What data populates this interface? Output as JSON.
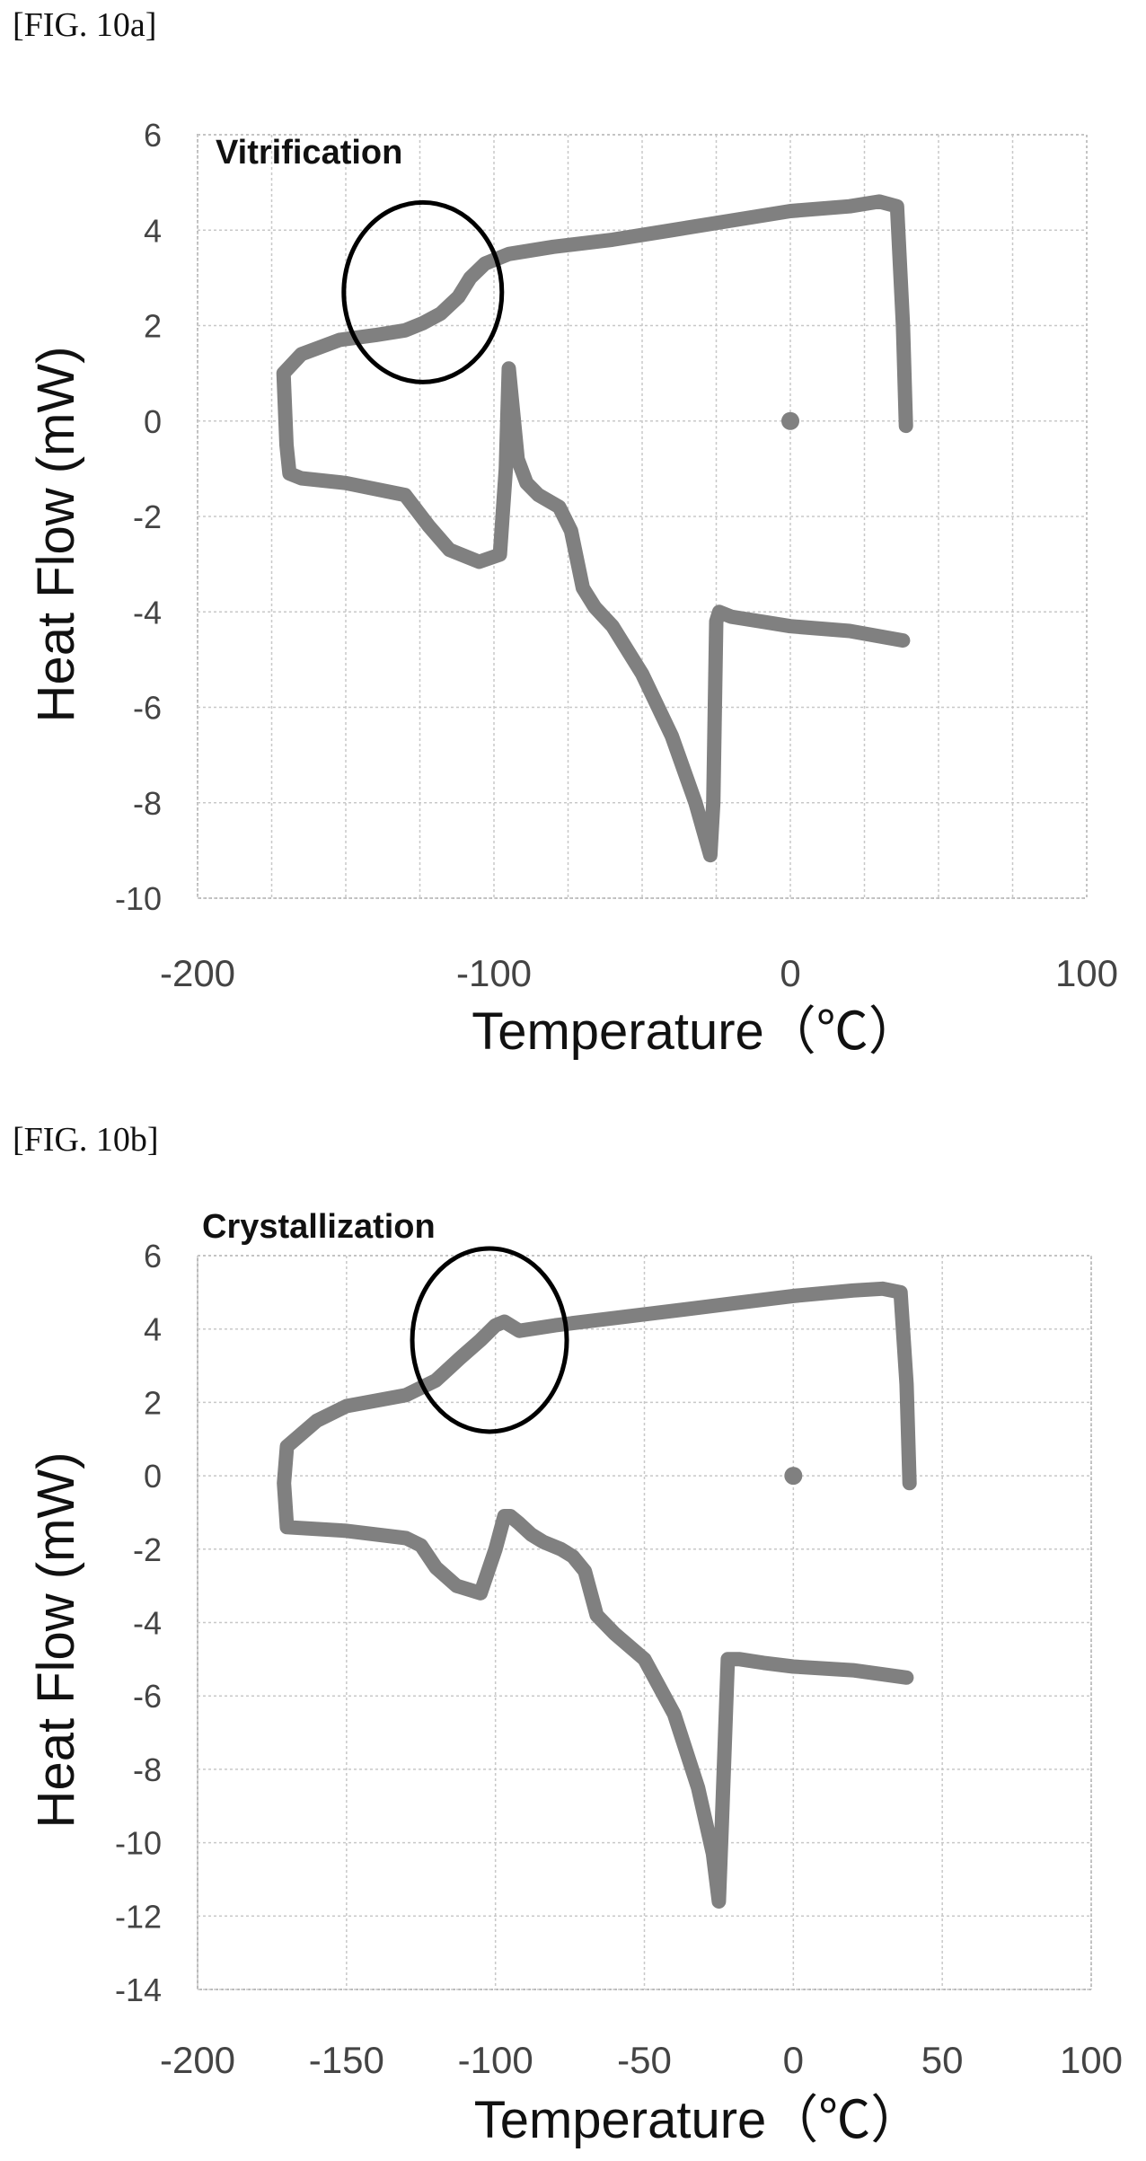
{
  "chart_data": [
    {
      "figure_label": "[FIG. 10a]",
      "type": "line",
      "title": "",
      "xlabel": "Temperature（℃）",
      "ylabel": "Heat Flow (mW)",
      "xlim": [
        -200,
        100
      ],
      "ylim": [
        -10,
        6
      ],
      "xticks": [
        -200,
        -100,
        0,
        100
      ],
      "yticks": [
        6,
        4,
        2,
        0,
        -2,
        -4,
        -6,
        -8,
        -10
      ],
      "grid": true,
      "annotation": "Vitrification",
      "circle_center": [
        -124,
        2.7
      ],
      "series": [
        {
          "x": [
            39,
            38,
            36,
            30,
            20,
            0,
            -20,
            -40,
            -60,
            -80,
            -95,
            -103,
            -108,
            -112,
            -118,
            -124,
            -130,
            -140,
            -152,
            -165,
            -171,
            -170,
            -169,
            -165,
            -150,
            -130,
            -122,
            -115,
            -105,
            -98,
            -96,
            -95,
            -92,
            -89,
            -85,
            -78,
            -74,
            -70,
            -66,
            -60,
            -50,
            -40,
            -32,
            -27,
            -26,
            -25,
            -24,
            -20,
            -10,
            0,
            20,
            38
          ],
          "y": [
            -0.1,
            2.0,
            4.5,
            4.6,
            4.5,
            4.4,
            4.2,
            4.0,
            3.8,
            3.65,
            3.5,
            3.3,
            3.0,
            2.6,
            2.25,
            2.05,
            1.9,
            1.8,
            1.7,
            1.4,
            1.0,
            -0.5,
            -1.1,
            -1.2,
            -1.3,
            -1.55,
            -2.2,
            -2.7,
            -2.95,
            -2.8,
            -1.0,
            1.1,
            -0.8,
            -1.3,
            -1.55,
            -1.8,
            -2.3,
            -3.5,
            -3.9,
            -4.3,
            -5.3,
            -6.6,
            -8.0,
            -9.1,
            -8.0,
            -4.2,
            -4.0,
            -4.1,
            -4.2,
            -4.3,
            -4.4,
            -4.6
          ]
        },
        {
          "x": [
            0
          ],
          "y": [
            0
          ]
        }
      ]
    },
    {
      "figure_label": "[FIG. 10b]",
      "type": "line",
      "title": "",
      "xlabel": "Temperature（℃）",
      "ylabel": "Heat Flow (mW)",
      "xlim": [
        -200,
        100
      ],
      "ylim": [
        -14,
        6
      ],
      "xticks": [
        -200,
        -150,
        -100,
        -50,
        0,
        50,
        100
      ],
      "yticks": [
        6,
        4,
        2,
        0,
        -2,
        -4,
        -6,
        -8,
        -10,
        -12,
        -14
      ],
      "grid": true,
      "annotation": "Crystallization",
      "circle_center": [
        -102,
        3.7
      ],
      "series": [
        {
          "x": [
            39,
            38,
            36,
            30,
            20,
            0,
            -20,
            -40,
            -60,
            -80,
            -92,
            -97,
            -100,
            -105,
            -112,
            -120,
            -130,
            -150,
            -160,
            -170,
            -171,
            -170,
            -150,
            -130,
            -125,
            -120,
            -113,
            -105,
            -100,
            -97,
            -95,
            -92,
            -88,
            -84,
            -78,
            -74,
            -70,
            -66,
            -60,
            -50,
            -40,
            -32,
            -27,
            -25,
            -24,
            -22,
            -18,
            -10,
            0,
            20,
            38
          ],
          "y": [
            -0.2,
            2.5,
            5.0,
            5.1,
            5.05,
            4.9,
            4.7,
            4.5,
            4.3,
            4.1,
            3.95,
            4.2,
            4.1,
            3.7,
            3.2,
            2.6,
            2.2,
            1.9,
            1.5,
            0.8,
            -0.2,
            -1.4,
            -1.5,
            -1.7,
            -1.9,
            -2.5,
            -3.0,
            -3.2,
            -2.0,
            -1.1,
            -1.1,
            -1.3,
            -1.6,
            -1.8,
            -2.0,
            -2.2,
            -2.6,
            -3.8,
            -4.3,
            -5.0,
            -6.5,
            -8.5,
            -10.3,
            -11.6,
            -9.5,
            -5.0,
            -5.0,
            -5.1,
            -5.2,
            -5.3,
            -5.5
          ]
        },
        {
          "x": [
            0
          ],
          "y": [
            0
          ]
        }
      ]
    }
  ]
}
